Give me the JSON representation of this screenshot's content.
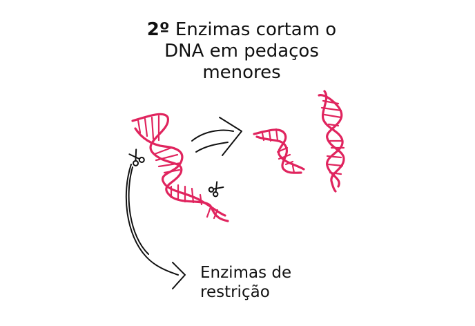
{
  "title": {
    "step": "2º",
    "text": "Enzimas cortam o DNA em pedaços menores"
  },
  "label": {
    "line1": "Enzimas de",
    "line2": "restrição"
  },
  "colors": {
    "dna": "#e0245e",
    "ink": "#111111"
  },
  "icons": [
    "scissors-icon",
    "arrow-icon"
  ]
}
